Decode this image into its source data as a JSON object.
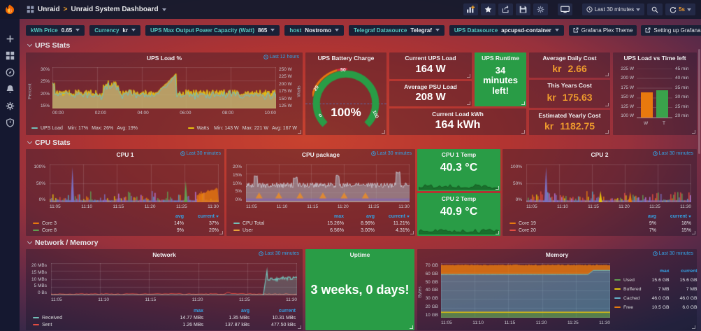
{
  "topbar": {
    "breadcrumb_app": "Unraid",
    "breadcrumb_sep": ">",
    "breadcrumb_title": "Unraid System Dashboard",
    "time_range": "Last 30 minutes",
    "refresh": "5s"
  },
  "rows": {
    "ups": "UPS Stats",
    "cpu": "CPU Stats",
    "netmem": "Network / Memory"
  },
  "variables": [
    {
      "label": "kWh Price",
      "value": "0.65"
    },
    {
      "label": "Currency",
      "value": "kr"
    },
    {
      "label": "UPS Max Output Power Capacity (Watt)",
      "value": "865"
    },
    {
      "label": "host",
      "value": "Nostromo"
    },
    {
      "label": "Telegraf Datasource",
      "value": "Telegraf"
    },
    {
      "label": "UPS Datasource",
      "value": "apcupsd-container"
    }
  ],
  "links": {
    "link1": "Grafana Plex Theme",
    "link2": "Setting up Grafana and InfluxDB for UPS monitoring on unRAID"
  },
  "panels": {
    "ups_load": {
      "title": "UPS Load %",
      "timerange": "Last 12 hours",
      "ylabel_left": "Percent",
      "ylabel_right": "Watts",
      "y_left": [
        "30%",
        "25%",
        "20%",
        "15%"
      ],
      "y_right": [
        "250 W",
        "225 W",
        "200 W",
        "175 W",
        "150 W",
        "125 W"
      ],
      "x": [
        "00:00",
        "02:00",
        "04:00",
        "06:00",
        "08:00",
        "10:00"
      ],
      "legend": [
        {
          "name": "UPS Load",
          "color": "#73bfb8",
          "min": "Min: 17%",
          "max": "Max: 26%",
          "avg": "Avg: 19%"
        },
        {
          "name": "Watts",
          "color": "#e8c20c",
          "min": "Min: 143 W",
          "max": "Max: 221 W",
          "avg": "Avg: 167 W"
        }
      ]
    },
    "battery": {
      "title": "UPS Battery Charge",
      "value": "100%",
      "ticks": [
        "0",
        "20",
        "50",
        "100"
      ]
    },
    "current_ups_load": {
      "title": "Current UPS Load",
      "value": "164 W"
    },
    "avg_psu_load": {
      "title": "Average PSU Load",
      "value": "208 W"
    },
    "current_load_kwh": {
      "title": "Current Load kWh",
      "value": "164 kWh"
    },
    "ups_runtime": {
      "title": "UPS Runtime",
      "line1": "34",
      "line2": "minutes",
      "line3": "left!"
    },
    "avg_daily_cost": {
      "title": "Average Daily Cost",
      "prefix": "kr",
      "value": "2.66"
    },
    "this_years_cost": {
      "title": "This Years Cost",
      "prefix": "kr",
      "value": "175.63"
    },
    "est_yearly_cost": {
      "title": "Estimated Yearly Cost",
      "prefix": "kr",
      "value": "1182.75"
    },
    "ups_vs_time": {
      "title": "UPS Load vs Time left",
      "y_left": [
        "225 W",
        "200 W",
        "175 W",
        "150 W",
        "125 W",
        "100 W"
      ],
      "y_right": [
        "45 min",
        "40 min",
        "35 min",
        "30 min",
        "25 min",
        "20 min"
      ],
      "bars": [
        {
          "label": "W",
          "color": "#e8790e",
          "watts": 164
        },
        {
          "label": "T",
          "color": "#3aa24b",
          "minutes": 34
        }
      ]
    },
    "cpu1": {
      "title": "CPU 1",
      "timerange": "Last 30 minutes",
      "y": [
        "100%",
        "50%",
        "0%"
      ],
      "x": [
        "11:05",
        "11:10",
        "11:15",
        "11:20",
        "11:25",
        "11:30"
      ],
      "col1": "avg",
      "col2": "current",
      "legend": [
        {
          "name": "Core 3",
          "color": "#e8790e",
          "avg": "14%",
          "current": "37%"
        },
        {
          "name": "Core 8",
          "color": "#629e51",
          "avg": "9%",
          "current": "20%"
        }
      ]
    },
    "cpu_package": {
      "title": "CPU package",
      "timerange": "Last 30 minutes",
      "y": [
        "20%",
        "15%",
        "10%",
        "5%",
        "0%"
      ],
      "x": [
        "11:05",
        "11:10",
        "11:15",
        "11:20",
        "11:25",
        "11:30"
      ],
      "col1": "max",
      "col2": "avg",
      "col3": "current",
      "legend": [
        {
          "name": "CPU Total",
          "color": "#73bfb8",
          "max": "15.26%",
          "avg": "8.96%",
          "current": "11.21%"
        },
        {
          "name": "User",
          "color": "#e8a13c",
          "max": "6.56%",
          "avg": "3.00%",
          "current": "4.31%"
        }
      ]
    },
    "cpu1_temp": {
      "title": "CPU 1 Temp",
      "value": "40.3 °C"
    },
    "cpu2_temp": {
      "title": "CPU 2 Temp",
      "value": "40.9 °C"
    },
    "cpu2": {
      "title": "CPU 2",
      "timerange": "Last 30 minutes",
      "y": [
        "100%",
        "50%",
        "0%"
      ],
      "x": [
        "11:05",
        "11:10",
        "11:15",
        "11:20",
        "11:25",
        "11:30"
      ],
      "col1": "avg",
      "col2": "current",
      "legend": [
        {
          "name": "Core 19",
          "color": "#e8790e",
          "avg": "9%",
          "current": "18%"
        },
        {
          "name": "Core 20",
          "color": "#e24d42",
          "avg": "7%",
          "current": "15%"
        }
      ]
    },
    "network": {
      "title": "Network",
      "timerange": "Last 30 minutes",
      "y": [
        "20 MBs",
        "15 MBs",
        "10 MBs",
        "5 MBs",
        "0 Bs"
      ],
      "x": [
        "11:05",
        "11:10",
        "11:15",
        "11:20",
        "11:25",
        "11:30"
      ],
      "col1": "max",
      "col2": "avg",
      "col3": "current",
      "legend": [
        {
          "name": "Received",
          "color": "#73bfb8",
          "max": "14.77 MBs",
          "avg": "1.35 MBs",
          "current": "10.31 MBs"
        },
        {
          "name": "Sent",
          "color": "#e24d42",
          "max": "1.26 MBs",
          "avg": "137.87 kBs",
          "current": "477.50 kBs"
        }
      ]
    },
    "uptime": {
      "title": "Uptime",
      "value": "3 weeks, 0 days!"
    },
    "memory": {
      "title": "Memory",
      "timerange": "Last 30 minutes",
      "ylabel": "Bytes",
      "y": [
        "70 GB",
        "60 GB",
        "50 GB",
        "40 GB",
        "30 GB",
        "20 GB",
        "10 GB"
      ],
      "x": [
        "11:05",
        "11:10",
        "11:15",
        "11:20",
        "11:25",
        "11:30"
      ],
      "col1": "max",
      "col2": "current",
      "legend": [
        {
          "name": "Used",
          "color": "#629e51",
          "max": "15.6 GB",
          "current": "15.6 GB"
        },
        {
          "name": "Buffered",
          "color": "#e5c30c",
          "max": "7 MB",
          "current": "7 MB"
        },
        {
          "name": "Cached",
          "color": "#64b0c8",
          "max": "46.0 GB",
          "current": "46.0 GB"
        },
        {
          "name": "Free",
          "color": "#e8790e",
          "max": "10.5 GB",
          "current": "6.0 GB"
        }
      ]
    }
  },
  "colors": {
    "green_panel": "#299c46",
    "orange_value": "#ee9a2d",
    "accent_blue": "#33a2e5",
    "teal_label": "#53c8c0"
  }
}
